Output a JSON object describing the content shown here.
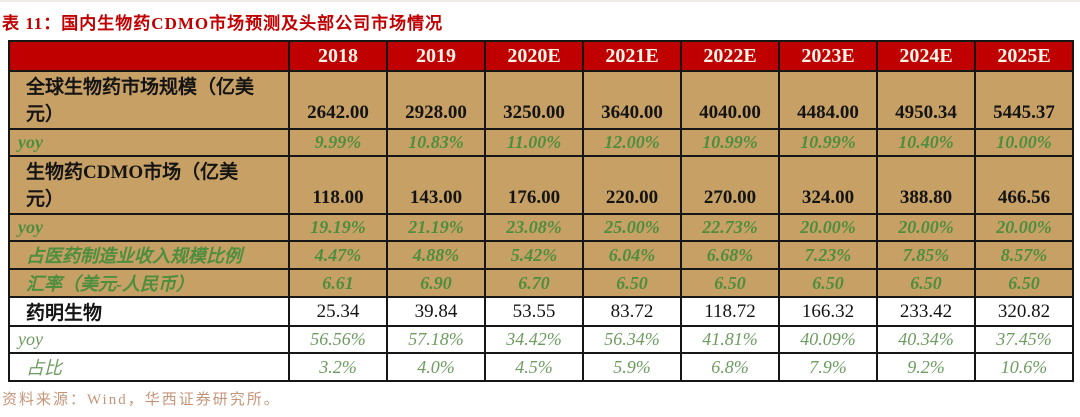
{
  "title": "表 11：国内生物药CDMO市场预测及头部公司市场情况",
  "source_note": "资料来源：Wind，华西证券研究所。",
  "colors": {
    "header_bg": "#c00000",
    "title_red": "#c00000",
    "row_tan_bg": "#c7a065",
    "green_text_tan_rows": "#4e8e3e",
    "green_text_white_rows": "#6d9b60",
    "black_text": "#141414",
    "source_text": "#c49579",
    "header_text": "#fdf3e7",
    "border": "#161616"
  },
  "table": {
    "corner_label": "",
    "years": [
      "2018",
      "2019",
      "2020E",
      "2021E",
      "2022E",
      "2023E",
      "2024E",
      "2025E"
    ],
    "rows": [
      {
        "label": "全球生物药市场规模（亿美\n元）",
        "variant": "tan-black",
        "tall": true,
        "values": [
          "2642.00",
          "2928.00",
          "3250.00",
          "3640.00",
          "4040.00",
          "4484.00",
          "4950.34",
          "5445.37"
        ]
      },
      {
        "label": "yoy",
        "variant": "tan-green",
        "tall": false,
        "values": [
          "9.99%",
          "10.83%",
          "11.00%",
          "12.00%",
          "10.99%",
          "10.99%",
          "10.40%",
          "10.00%"
        ]
      },
      {
        "label": "生物药CDMO市场（亿美\n元）",
        "variant": "tan-black",
        "tall": true,
        "values": [
          "118.00",
          "143.00",
          "176.00",
          "220.00",
          "270.00",
          "324.00",
          "388.80",
          "466.56"
        ]
      },
      {
        "label": "yoy",
        "variant": "tan-green",
        "tall": false,
        "values": [
          "19.19%",
          "21.19%",
          "23.08%",
          "25.00%",
          "22.73%",
          "20.00%",
          "20.00%",
          "20.00%"
        ]
      },
      {
        "label": "占医药制造业收入规模比例",
        "variant": "tan-green",
        "tall": false,
        "values": [
          "4.47%",
          "4.88%",
          "5.42%",
          "6.04%",
          "6.68%",
          "7.23%",
          "7.85%",
          "8.57%"
        ]
      },
      {
        "label": "汇率（美元-人民币）",
        "variant": "tan-green",
        "tall": false,
        "values": [
          "6.61",
          "6.90",
          "6.70",
          "6.50",
          "6.50",
          "6.50",
          "6.50",
          "6.50"
        ]
      },
      {
        "label": "药明生物",
        "variant": "white-black",
        "tall": false,
        "values": [
          "25.34",
          "39.84",
          "53.55",
          "83.72",
          "118.72",
          "166.32",
          "233.42",
          "320.82"
        ]
      },
      {
        "label": "yoy",
        "variant": "white-green",
        "tall": false,
        "values": [
          "56.56%",
          "57.18%",
          "34.42%",
          "56.34%",
          "41.81%",
          "40.09%",
          "40.34%",
          "37.45%"
        ]
      },
      {
        "label": "占比",
        "variant": "white-green",
        "tall": false,
        "values": [
          "3.2%",
          "4.0%",
          "4.5%",
          "5.9%",
          "6.8%",
          "7.9%",
          "9.2%",
          "10.6%"
        ]
      }
    ]
  }
}
